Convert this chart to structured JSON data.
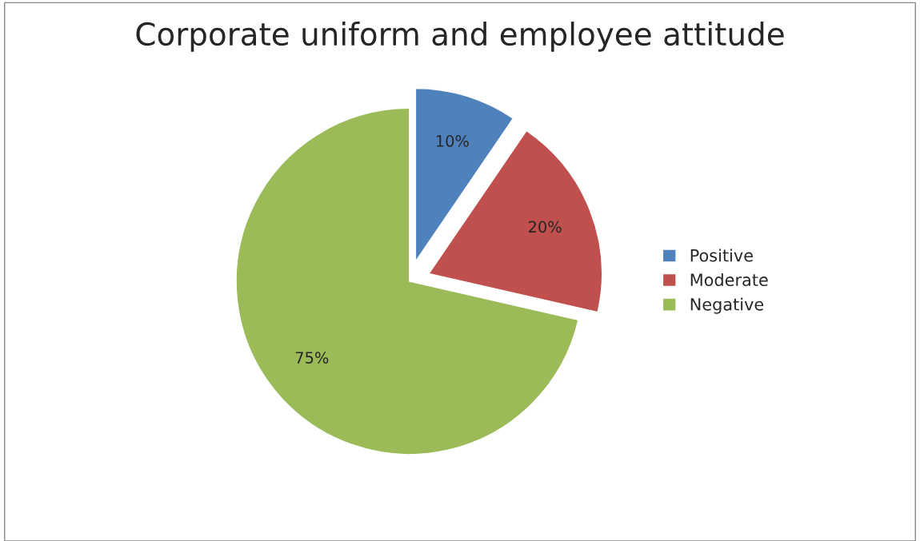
{
  "chart_data": {
    "type": "pie",
    "title": "Corporate uniform and employee attitude",
    "categories": [
      "Positive",
      "Moderate",
      "Negative"
    ],
    "values": [
      10,
      20,
      75
    ],
    "colors": [
      "#4f81bd",
      "#c0504d",
      "#9bbb59"
    ],
    "value_labels": [
      "10%",
      "20%",
      "75%"
    ],
    "legend": "right"
  }
}
